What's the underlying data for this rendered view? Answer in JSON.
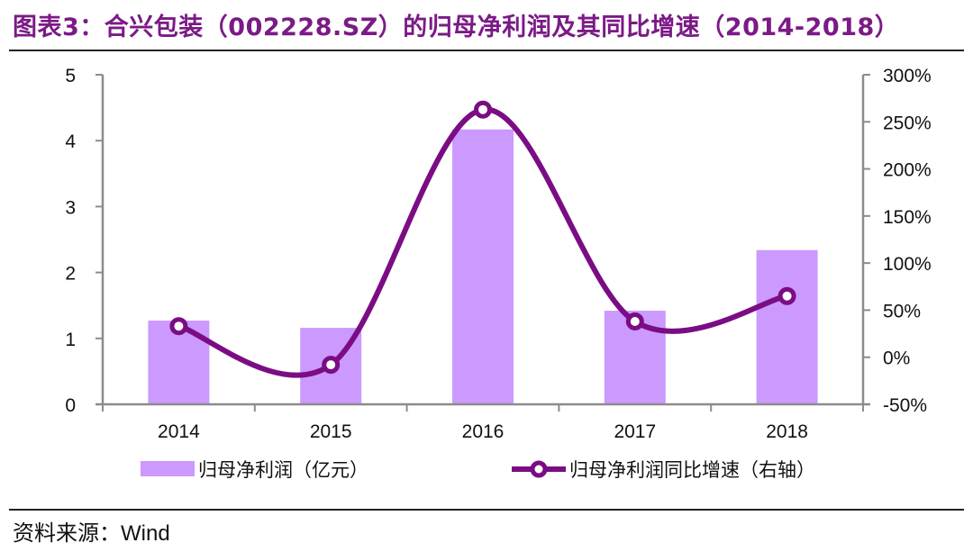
{
  "title": "图表3：合兴包装（002228.SZ）的归母净利润及其同比增速（2014-2018）",
  "source_label": "资料来源：",
  "source_value": "Wind",
  "colors": {
    "bar": "#cc99ff",
    "line": "#7b0d84",
    "title": "#7b1a86",
    "axis": "#8c8c8c"
  },
  "legend": {
    "bar_label": "归母净利润（亿元）",
    "line_label": "归母净利润同比增速（右轴）"
  },
  "chart_data": {
    "type": "bar+line",
    "title": "图表3：合兴包装（002228.SZ）的归母净利润及其同比增速（2014-2018）",
    "categories": [
      "2014",
      "2015",
      "2016",
      "2017",
      "2018"
    ],
    "series": [
      {
        "name": "归母净利润（亿元）",
        "type": "bar",
        "axis": "left",
        "values": [
          1.27,
          1.16,
          4.17,
          1.42,
          2.34
        ]
      },
      {
        "name": "归母净利润同比增速（右轴）",
        "type": "line",
        "axis": "right",
        "unit": "%",
        "values": [
          33,
          -8,
          263,
          38,
          65
        ]
      }
    ],
    "left_axis": {
      "min": 0,
      "max": 5,
      "ticks": [
        "0",
        "1",
        "2",
        "3",
        "4",
        "5"
      ]
    },
    "right_axis": {
      "min": -50,
      "max": 300,
      "ticks": [
        "-50%",
        "0%",
        "50%",
        "100%",
        "150%",
        "200%",
        "250%",
        "300%"
      ]
    },
    "xlabel": "",
    "ylabel": "",
    "grid": false,
    "legend_position": "bottom"
  }
}
